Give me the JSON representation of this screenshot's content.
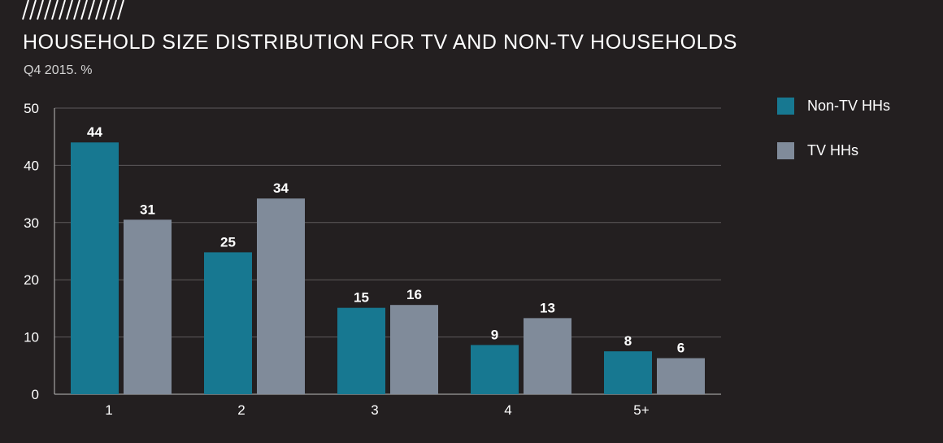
{
  "colors": {
    "background": "#231f20",
    "non_tv": "#177891",
    "tv": "#808b9a",
    "grid": "#5e5a5b",
    "text": "#ffffff"
  },
  "header": {
    "title": "HOUSEHOLD SIZE DISTRIBUTION FOR TV AND NON-TV HOUSEHOLDS",
    "subtitle": "Q4 2015. %"
  },
  "legend": [
    {
      "label": "Non-TV HHs",
      "color": "#177891"
    },
    {
      "label": "TV HHs",
      "color": "#808b9a"
    }
  ],
  "chart_data": {
    "type": "bar",
    "title": "HOUSEHOLD SIZE DISTRIBUTION FOR TV AND NON-TV HOUSEHOLDS",
    "subtitle": "Q4 2015. %",
    "categories": [
      "1",
      "2",
      "3",
      "4",
      "5+"
    ],
    "series": [
      {
        "name": "Non-TV HHs",
        "values": [
          44,
          24.8,
          15.1,
          8.6,
          7.5
        ],
        "labels": [
          "44",
          "25",
          "15",
          "9",
          "8"
        ]
      },
      {
        "name": "TV HHs",
        "values": [
          30.5,
          34.2,
          15.6,
          13.3,
          6.3
        ],
        "labels": [
          "31",
          "34",
          "16",
          "13",
          "6"
        ]
      }
    ],
    "yticks": [
      "0",
      "10",
      "20",
      "30",
      "40",
      "50"
    ],
    "ylim": [
      0,
      50
    ],
    "xlabel": "",
    "ylabel": "",
    "grid": true,
    "legend_position": "right"
  }
}
